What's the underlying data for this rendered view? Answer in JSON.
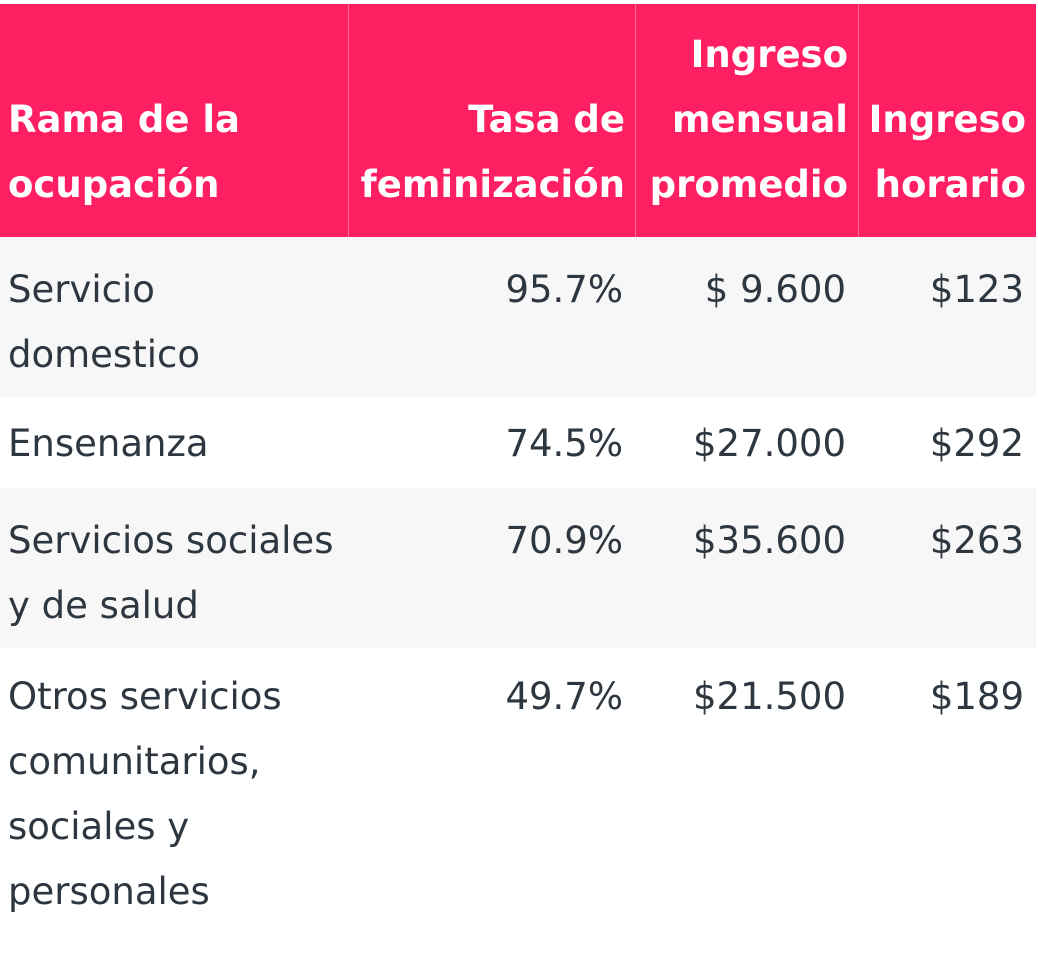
{
  "table": {
    "headers": [
      "Rama de la ocupación",
      "Tasa de feminización",
      "Ingreso mensual promedio",
      "Ingreso horario"
    ],
    "rows": [
      [
        "Servicio domestico",
        "95.7%",
        "$ 9.600",
        "$123"
      ],
      [
        "Ensenanza",
        "74.5%",
        "$27.000",
        "$292"
      ],
      [
        "Servicios sociales y de salud",
        "70.9%",
        "$35.600",
        "$263"
      ],
      [
        "Otros servicios comunitarios, sociales y personales",
        "49.7%",
        "$21.500",
        "$189"
      ]
    ]
  },
  "colors": {
    "header_bg": "#ff1f62",
    "header_text": "#ffffff",
    "body_text": "#2e3640",
    "stripe_bg": "#f7f7f7"
  }
}
